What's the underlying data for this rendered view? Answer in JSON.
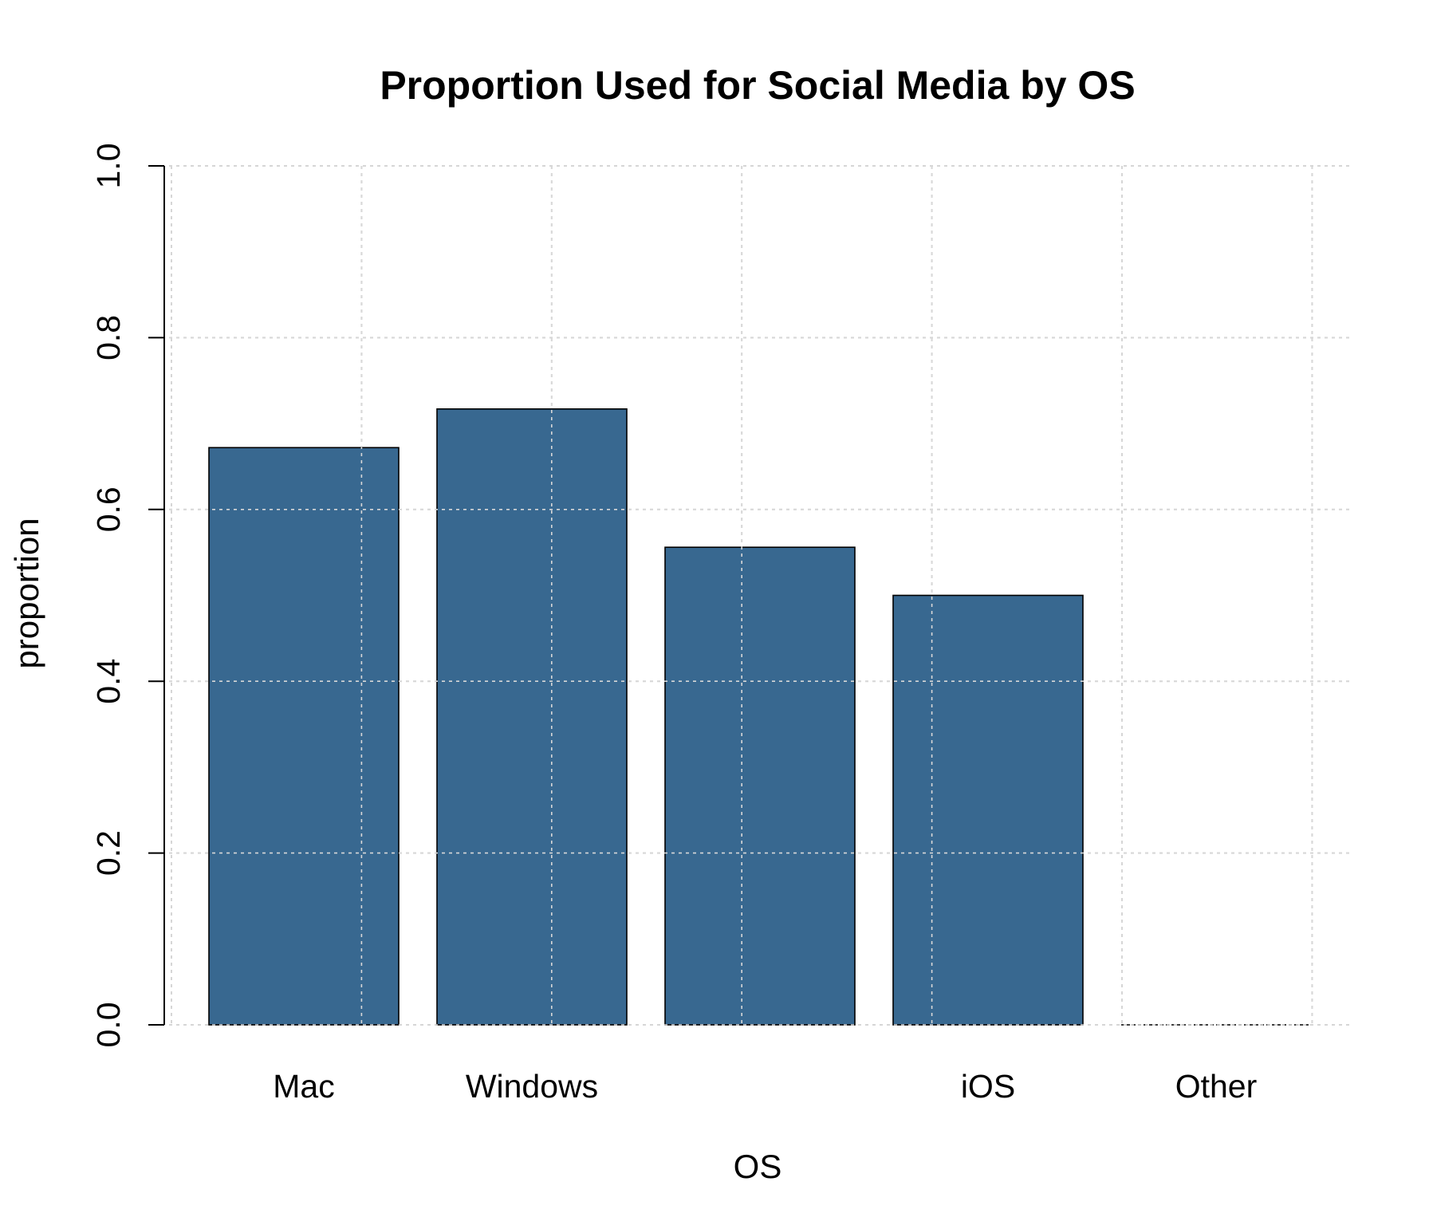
{
  "chart_data": {
    "type": "bar",
    "title": "Proportion Used for Social Media by OS",
    "xlabel": "OS",
    "ylabel": "proportion",
    "categories": [
      "Mac",
      "Windows",
      "",
      "iOS",
      "Other"
    ],
    "values": [
      0.672,
      0.717,
      0.556,
      0.5,
      0.0
    ],
    "ylim": [
      0,
      1
    ],
    "yticks": [
      "0.0",
      "0.2",
      "0.4",
      "0.6",
      "0.8",
      "1.0"
    ],
    "bar_color": "#386890",
    "grid": true,
    "legend": "none"
  }
}
